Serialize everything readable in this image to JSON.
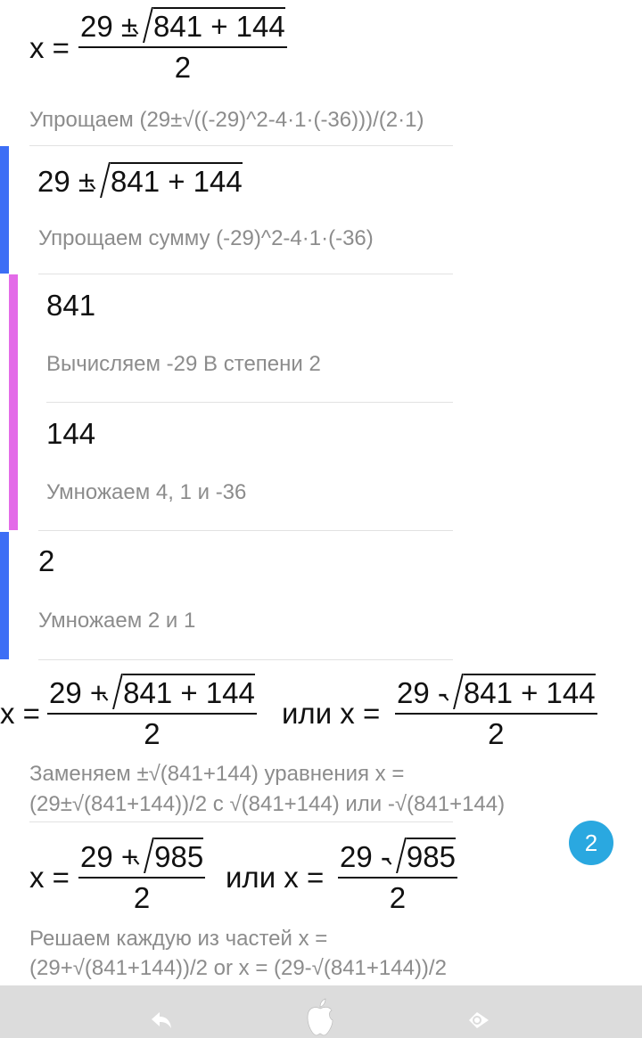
{
  "colors": {
    "level1_bar": "#3d6ef5",
    "level2_bar": "#e36be8",
    "badge": "#2aa8e0",
    "hint_text": "#8c8c8c"
  },
  "step1": {
    "lhs": "x =",
    "num_prefix": "29 ±",
    "radicand": "841 + 144",
    "den": "2",
    "hint": "Упрощаем (29±√((-29)^2-4·1·(-36)))/(2·1)"
  },
  "sub1": {
    "expr_prefix": "29 ±",
    "radicand": "841 + 144",
    "hint": "Упрощаем сумму (-29)^2-4·1·(-36)"
  },
  "sub1a": {
    "value": "841",
    "hint": "Вычисляем -29 В степени 2"
  },
  "sub1b": {
    "value": "144",
    "hint": "Умножаем 4, 1 и -36"
  },
  "sub2": {
    "value": "2",
    "hint": "Умножаем 2 и 1"
  },
  "step2": {
    "lhs": "x =",
    "num1_prefix": "29 +",
    "radicand": "841 + 144",
    "den": "2",
    "or": "или x =",
    "num2_prefix": "29 -",
    "hint_line1": "Заменяем ±√(841+144) уравнения x =",
    "hint_line2": "(29±√(841+144))/2 с √(841+144) или -√(841+144)"
  },
  "step3": {
    "lhs": "x =",
    "num1_prefix": "29 +",
    "radicand": "985",
    "den": "2",
    "or": "или x =",
    "num2_prefix": "29 -",
    "hint_line1": "Решаем каждую из частей x =",
    "hint_line2": "(29+√(841+144))/2 or x = (29-√(841+144))/2"
  },
  "badge": {
    "count": "2"
  },
  "navbar": {
    "icons": [
      "back-arrow-icon",
      "apple-icon",
      "eye-icon"
    ]
  }
}
